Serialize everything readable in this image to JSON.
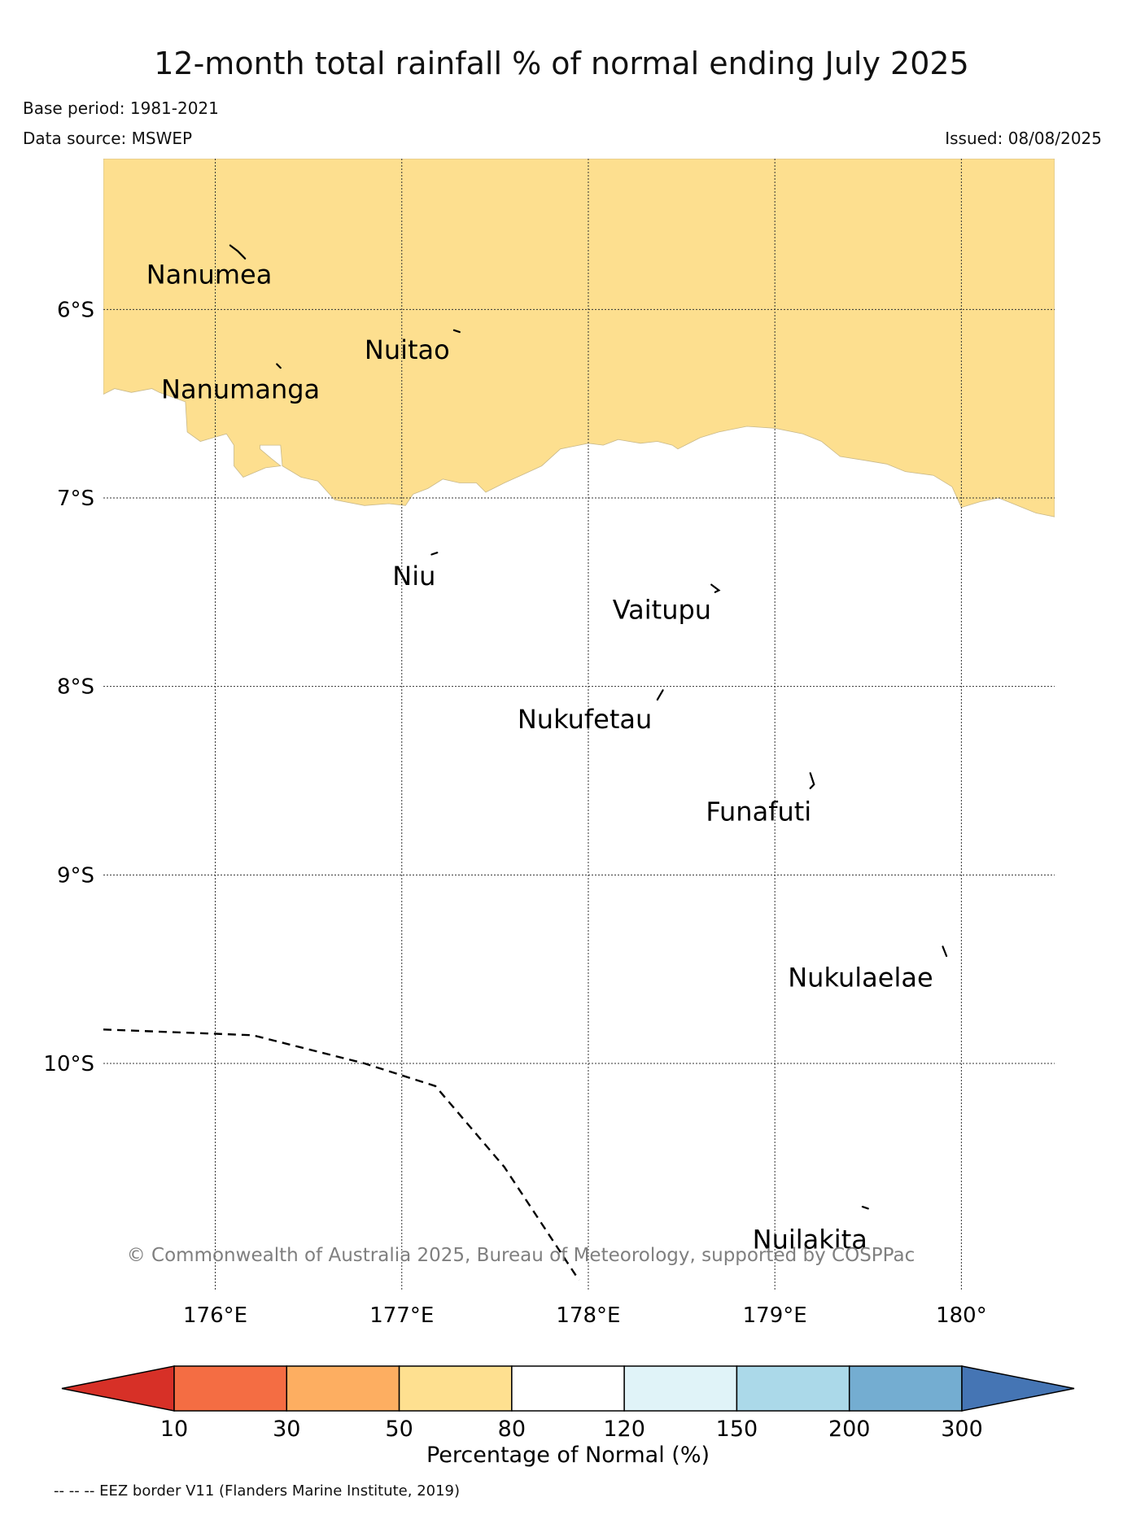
{
  "header": {
    "title": "12-month total rainfall % of normal ending July 2025",
    "base_period": "Base period: 1981-2021",
    "data_source": "Data source: MSWEP",
    "issued": "Issued: 08/08/2025"
  },
  "map": {
    "extent": {
      "lon_min": 175.4,
      "lon_max": 180.5,
      "lat_max": -5.2,
      "lat_min": -11.2
    },
    "lat_ticks": [
      {
        "lat": -6,
        "label": "6°S"
      },
      {
        "lat": -7,
        "label": "7°S"
      },
      {
        "lat": -8,
        "label": "8°S"
      },
      {
        "lat": -9,
        "label": "9°S"
      },
      {
        "lat": -10,
        "label": "10°S"
      }
    ],
    "lon_ticks": [
      {
        "lon": 176,
        "label": "176°E"
      },
      {
        "lon": 177,
        "label": "177°E"
      },
      {
        "lon": 178,
        "label": "178°E"
      },
      {
        "lon": 179,
        "label": "179°E"
      },
      {
        "lon": 180,
        "label": "180°"
      }
    ],
    "rainfall_region": {
      "category": "50–80",
      "color": "#fddf8f",
      "southern_boundary": [
        [
          175.4,
          -6.45
        ],
        [
          175.46,
          -6.42
        ],
        [
          175.55,
          -6.44
        ],
        [
          175.66,
          -6.42
        ],
        [
          175.7,
          -6.44
        ],
        [
          175.84,
          -6.49
        ],
        [
          175.85,
          -6.65
        ],
        [
          175.92,
          -6.7
        ],
        [
          176.06,
          -6.66
        ],
        [
          176.1,
          -6.72
        ],
        [
          176.1,
          -6.83
        ],
        [
          176.15,
          -6.89
        ],
        [
          176.27,
          -6.84
        ],
        [
          176.35,
          -6.83
        ],
        [
          176.3,
          -6.79
        ],
        [
          176.24,
          -6.74
        ],
        [
          176.24,
          -6.72
        ],
        [
          176.35,
          -6.72
        ],
        [
          176.36,
          -6.83
        ],
        [
          176.46,
          -6.89
        ],
        [
          176.55,
          -6.91
        ],
        [
          176.64,
          -7.01
        ],
        [
          176.8,
          -7.04
        ],
        [
          176.93,
          -7.03
        ],
        [
          177.02,
          -7.04
        ],
        [
          177.06,
          -6.98
        ],
        [
          177.14,
          -6.95
        ],
        [
          177.22,
          -6.9
        ],
        [
          177.31,
          -6.92
        ],
        [
          177.4,
          -6.92
        ],
        [
          177.45,
          -6.97
        ],
        [
          177.55,
          -6.92
        ],
        [
          177.64,
          -6.88
        ],
        [
          177.75,
          -6.83
        ],
        [
          177.85,
          -6.74
        ],
        [
          177.9,
          -6.73
        ],
        [
          178.0,
          -6.71
        ],
        [
          178.08,
          -6.72
        ],
        [
          178.16,
          -6.69
        ],
        [
          178.28,
          -6.71
        ],
        [
          178.37,
          -6.7
        ],
        [
          178.45,
          -6.72
        ],
        [
          178.48,
          -6.74
        ],
        [
          178.52,
          -6.72
        ],
        [
          178.6,
          -6.68
        ],
        [
          178.7,
          -6.65
        ],
        [
          178.85,
          -6.62
        ],
        [
          179.0,
          -6.63
        ],
        [
          179.15,
          -6.66
        ],
        [
          179.25,
          -6.7
        ],
        [
          179.35,
          -6.78
        ],
        [
          179.48,
          -6.8
        ],
        [
          179.6,
          -6.82
        ],
        [
          179.7,
          -6.86
        ],
        [
          179.85,
          -6.88
        ],
        [
          179.95,
          -6.94
        ],
        [
          180.0,
          -7.05
        ],
        [
          180.1,
          -7.02
        ],
        [
          180.2,
          -7.0
        ],
        [
          180.3,
          -7.04
        ],
        [
          180.4,
          -7.08
        ],
        [
          180.5,
          -7.1
        ]
      ]
    },
    "islands": [
      {
        "name": "Nanumea",
        "label_lon": 175.63,
        "label_lat": -5.81,
        "shape": [
          [
            176.08,
            -5.66
          ],
          [
            176.12,
            -5.69
          ],
          [
            176.16,
            -5.73
          ]
        ]
      },
      {
        "name": "Nuitao",
        "label_lon": 176.8,
        "label_lat": -6.21,
        "shape": [
          [
            177.28,
            -6.11
          ],
          [
            177.31,
            -6.12
          ]
        ]
      },
      {
        "name": "Nanumanga",
        "label_lon": 175.71,
        "label_lat": -6.42,
        "shape": [
          [
            176.33,
            -6.29
          ],
          [
            176.35,
            -6.31
          ]
        ]
      },
      {
        "name": "Niu",
        "label_lon": 176.95,
        "label_lat": -7.41,
        "shape": [
          [
            177.16,
            -7.3
          ],
          [
            177.19,
            -7.29
          ]
        ]
      },
      {
        "name": "Vaitupu",
        "label_lon": 178.13,
        "label_lat": -7.59,
        "shape": [
          [
            178.66,
            -7.46
          ],
          [
            178.7,
            -7.49
          ],
          [
            178.68,
            -7.5
          ]
        ]
      },
      {
        "name": "Nukufetau",
        "label_lon": 177.62,
        "label_lat": -8.17,
        "shape": [
          [
            178.37,
            -8.07
          ],
          [
            178.4,
            -8.02
          ]
        ]
      },
      {
        "name": "Funafuti",
        "label_lon": 178.63,
        "label_lat": -8.66,
        "shape": [
          [
            179.19,
            -8.46
          ],
          [
            179.21,
            -8.52
          ],
          [
            179.19,
            -8.54
          ]
        ]
      },
      {
        "name": "Nukulaelae",
        "label_lon": 179.07,
        "label_lat": -9.54,
        "shape": [
          [
            179.9,
            -9.38
          ],
          [
            179.92,
            -9.43
          ]
        ]
      },
      {
        "name": "Nuilakita",
        "label_lon": 178.88,
        "label_lat": -10.93,
        "shape": [
          [
            179.47,
            -10.76
          ],
          [
            179.5,
            -10.77
          ]
        ]
      }
    ],
    "eez_border": [
      [
        175.4,
        -9.82
      ],
      [
        176.2,
        -9.85
      ],
      [
        176.8,
        -10.0
      ],
      [
        177.18,
        -10.12
      ],
      [
        177.55,
        -10.55
      ],
      [
        177.95,
        -11.15
      ]
    ],
    "copyright": "© Commonwealth of Australia 2025, Bureau of Meteorology, supported by COSPPac"
  },
  "legend": {
    "colors": [
      "#d73027",
      "#f46d43",
      "#fdae61",
      "#fee090",
      "#ffffff",
      "#e0f3f8",
      "#abd9e9",
      "#74add1",
      "#4575b4"
    ],
    "boundaries": [
      "10",
      "30",
      "50",
      "80",
      "120",
      "150",
      "200",
      "300"
    ],
    "label": "Percentage of Normal (%)"
  },
  "footer": {
    "eez_note": "-- -- -- EEZ border V11 (Flanders Marine Institute, 2019)"
  }
}
